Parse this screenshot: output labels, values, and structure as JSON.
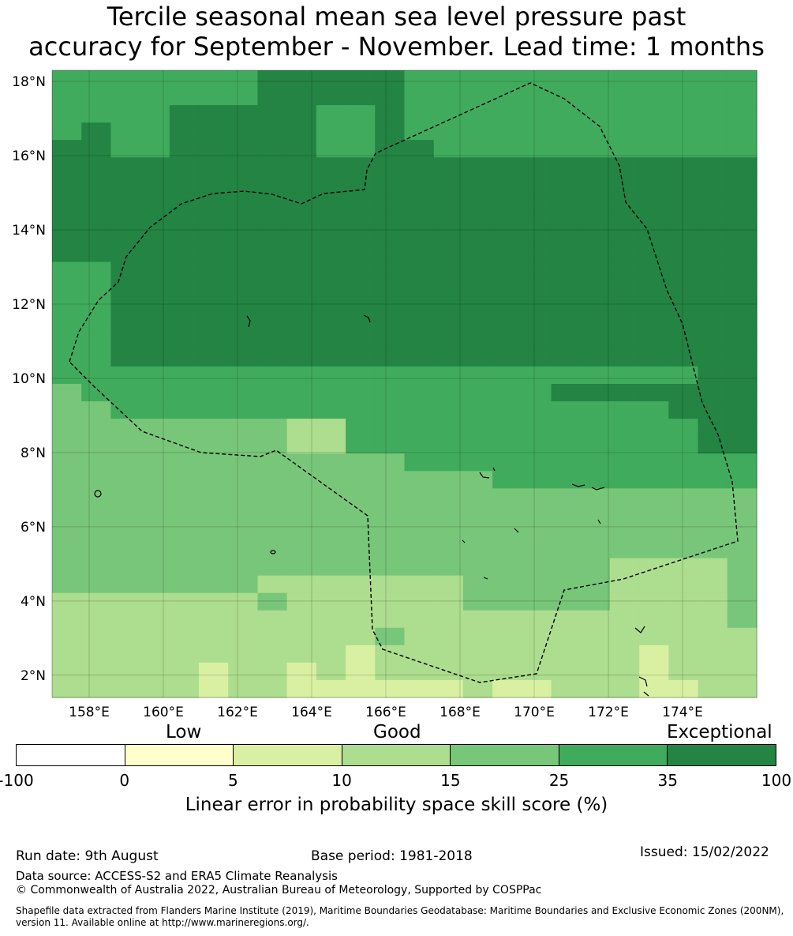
{
  "title": {
    "line1": "Tercile seasonal mean sea level pressure past",
    "line2": "accuracy for September - November. Lead time: 1 months"
  },
  "map": {
    "lon_range": [
      157,
      176
    ],
    "lat_range": [
      1.4,
      18.3
    ],
    "lat_ticks": [
      "18°N",
      "16°N",
      "14°N",
      "12°N",
      "10°N",
      "8°N",
      "6°N",
      "4°N",
      "2°N"
    ],
    "lon_ticks": [
      "158°E",
      "160°E",
      "162°E",
      "164°E",
      "166°E",
      "168°E",
      "170°E",
      "172°E",
      "174°E"
    ],
    "boundary_style": "dashed",
    "gridlines": true
  },
  "legend": {
    "categories": [
      "Low",
      "Good",
      "Exceptional"
    ],
    "ticks": [
      "-100",
      "0",
      "5",
      "10",
      "15",
      "25",
      "35",
      "100"
    ],
    "colors": [
      "#ffffff",
      "#ffffcc",
      "#d9f0a3",
      "#addd8e",
      "#78c679",
      "#41ab5d",
      "#238443"
    ],
    "title": "Linear error in probability space skill score (%)"
  },
  "footer": {
    "run_date": "Run date: 9th August",
    "base_period": "Base period: 1981-2018",
    "issued": "Issued: 15/02/2022",
    "data_source": "Data source: ACCESS-S2 and ERA5 Climate Reanalysis",
    "copyright": "© Commonwealth of Australia 2022, Australian Bureau of Meteorology, Supported by COSPPac",
    "shapefile": "Shapefile data extracted from Flanders Marine Institute (2019), Maritime Boundaries Geodatabase: Maritime Boundaries and Exclusive Economic Zones (200NM), version 11. Available online at http://www.marineregions.org/."
  }
}
